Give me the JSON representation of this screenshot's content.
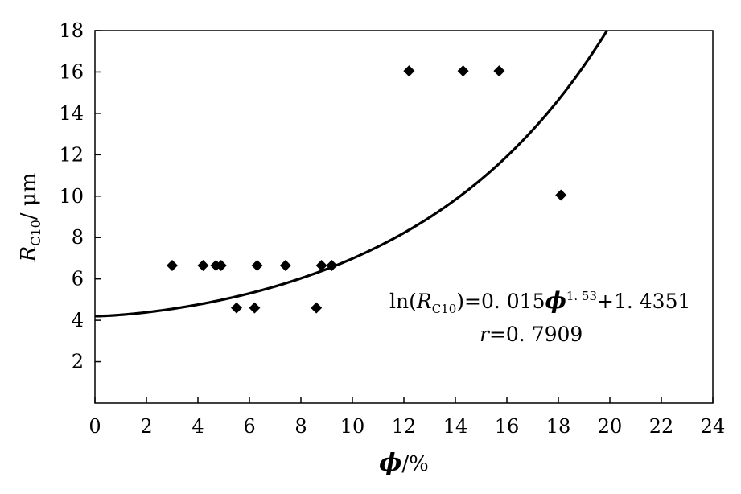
{
  "chart_data": {
    "type": "scatter",
    "title": "",
    "xlabel": {
      "symbol": "ϕ",
      "unit": "/%"
    },
    "ylabel": {
      "symbol": "R",
      "subscript": "C10",
      "unit": "/ μm"
    },
    "xlim": [
      0,
      24
    ],
    "ylim": [
      0,
      18
    ],
    "x_ticks": [
      0,
      2,
      4,
      6,
      8,
      10,
      12,
      14,
      16,
      18,
      20,
      22,
      24
    ],
    "y_ticks": [
      2,
      4,
      6,
      8,
      10,
      12,
      14,
      16,
      18
    ],
    "grid": false,
    "legend": "none",
    "marker_color": "#000000",
    "series": [
      {
        "type": "scatter",
        "marker": "diamond",
        "points": [
          {
            "x": 3.0,
            "y": 6.65
          },
          {
            "x": 4.2,
            "y": 6.65
          },
          {
            "x": 4.7,
            "y": 6.65
          },
          {
            "x": 4.9,
            "y": 6.65
          },
          {
            "x": 5.5,
            "y": 4.6
          },
          {
            "x": 6.2,
            "y": 4.6
          },
          {
            "x": 6.3,
            "y": 6.65
          },
          {
            "x": 7.4,
            "y": 6.65
          },
          {
            "x": 8.6,
            "y": 4.6
          },
          {
            "x": 8.8,
            "y": 6.65
          },
          {
            "x": 9.2,
            "y": 6.65
          },
          {
            "x": 12.2,
            "y": 16.05
          },
          {
            "x": 14.3,
            "y": 16.05
          },
          {
            "x": 15.7,
            "y": 16.05
          },
          {
            "x": 18.1,
            "y": 10.05
          }
        ]
      },
      {
        "type": "line",
        "style": "fitted curve",
        "equation": {
          "a": 0.015,
          "b": 1.53,
          "c": 1.4351
        },
        "x_range": [
          0,
          24
        ]
      }
    ],
    "annotations": {
      "equation_text": {
        "ln_paren": "ln(",
        "r_symbol": "R",
        "r_sub": "C10",
        "middle": ")=0. 015",
        "phi": "ϕ",
        "exponent": "1. 53",
        "tail": "+1. 4351"
      },
      "r_text": {
        "symbol": "r",
        "value": "=0. 7909"
      }
    }
  }
}
